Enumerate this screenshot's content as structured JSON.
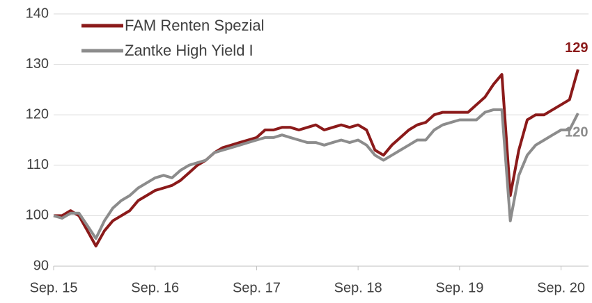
{
  "chart_data": {
    "type": "line",
    "x": [
      "2015-09",
      "2015-10",
      "2015-11",
      "2015-12",
      "2016-01",
      "2016-02",
      "2016-03",
      "2016-04",
      "2016-05",
      "2016-06",
      "2016-07",
      "2016-08",
      "2016-09",
      "2016-10",
      "2016-11",
      "2016-12",
      "2017-01",
      "2017-02",
      "2017-03",
      "2017-04",
      "2017-05",
      "2017-06",
      "2017-07",
      "2017-08",
      "2017-09",
      "2017-10",
      "2017-11",
      "2017-12",
      "2018-01",
      "2018-02",
      "2018-03",
      "2018-04",
      "2018-05",
      "2018-06",
      "2018-07",
      "2018-08",
      "2018-09",
      "2018-10",
      "2018-11",
      "2018-12",
      "2019-01",
      "2019-02",
      "2019-03",
      "2019-04",
      "2019-05",
      "2019-06",
      "2019-07",
      "2019-08",
      "2019-09",
      "2019-10",
      "2019-11",
      "2019-12",
      "2020-01",
      "2020-02",
      "2020-03",
      "2020-04",
      "2020-05",
      "2020-06",
      "2020-07",
      "2020-08",
      "2020-09",
      "2020-10",
      "2020-11"
    ],
    "series": [
      {
        "name": "FAM Renten Spezial",
        "color": "#8b1a1a",
        "values": [
          100,
          100,
          101,
          100,
          97,
          94,
          97,
          99,
          100,
          101,
          103,
          104,
          105,
          105.5,
          106,
          107,
          108.5,
          110,
          111,
          112.5,
          113.5,
          114,
          114.5,
          115,
          115.5,
          117,
          117,
          117.5,
          117.5,
          117,
          117.5,
          118,
          117,
          117.5,
          118,
          117.5,
          118,
          117,
          113,
          112,
          114,
          115.5,
          117,
          118,
          118.5,
          120,
          120.5,
          120.5,
          120.5,
          120.5,
          122,
          123.5,
          126,
          128,
          104,
          113,
          119,
          120,
          120,
          121,
          122,
          123,
          129
        ],
        "value_labels": [
          null,
          null,
          null,
          null,
          null,
          null,
          null,
          null,
          null,
          null,
          null,
          null,
          null,
          null,
          null,
          null,
          null,
          null,
          null,
          null,
          null,
          null,
          null,
          null,
          null,
          null,
          null,
          null,
          null,
          null,
          null,
          null,
          null,
          null,
          null,
          null,
          null,
          null,
          null,
          null,
          null,
          null,
          null,
          null,
          null,
          null,
          null,
          null,
          null,
          null,
          null,
          null,
          null,
          null,
          null,
          null,
          null,
          null,
          null,
          null,
          null,
          null,
          "129"
        ]
      },
      {
        "name": "Zantke High Yield I",
        "color": "#8c8c8c",
        "values": [
          100,
          99.5,
          100.5,
          100.5,
          98,
          95.5,
          99,
          101.5,
          103,
          104,
          105.5,
          106.5,
          107.5,
          108,
          107.5,
          109,
          110,
          110.5,
          111,
          112.5,
          113,
          113.5,
          114,
          114.5,
          115,
          115.5,
          115.5,
          116,
          115.5,
          115,
          114.5,
          114.5,
          114,
          114.5,
          115,
          114.5,
          115,
          114,
          112,
          111,
          112,
          113,
          114,
          115,
          115,
          117,
          118,
          118.5,
          119,
          119,
          119,
          120.5,
          121,
          121,
          99,
          108,
          112,
          114,
          115,
          116,
          117,
          117,
          120.3
        ],
        "value_labels": [
          null,
          null,
          null,
          null,
          null,
          null,
          null,
          null,
          null,
          null,
          null,
          null,
          null,
          null,
          null,
          null,
          null,
          null,
          null,
          null,
          null,
          null,
          null,
          null,
          null,
          null,
          null,
          null,
          null,
          null,
          null,
          null,
          null,
          null,
          null,
          null,
          null,
          null,
          null,
          null,
          null,
          null,
          null,
          null,
          null,
          null,
          null,
          null,
          null,
          null,
          null,
          null,
          null,
          null,
          null,
          null,
          null,
          null,
          null,
          null,
          null,
          null,
          "120"
        ]
      }
    ],
    "xlim": [
      "2015-09",
      "2020-12"
    ],
    "xticks": [
      {
        "value": "2015-09",
        "label": "Sep. 15"
      },
      {
        "value": "2016-09",
        "label": "Sep. 16"
      },
      {
        "value": "2017-09",
        "label": "Sep. 17"
      },
      {
        "value": "2018-09",
        "label": "Sep. 18"
      },
      {
        "value": "2019-09",
        "label": "Sep. 19"
      },
      {
        "value": "2020-09",
        "label": "Sep. 20"
      }
    ],
    "ylim": [
      90,
      140
    ],
    "yticks": [
      90,
      100,
      110,
      120,
      130,
      140
    ],
    "grid": true,
    "legend": "top-left"
  }
}
